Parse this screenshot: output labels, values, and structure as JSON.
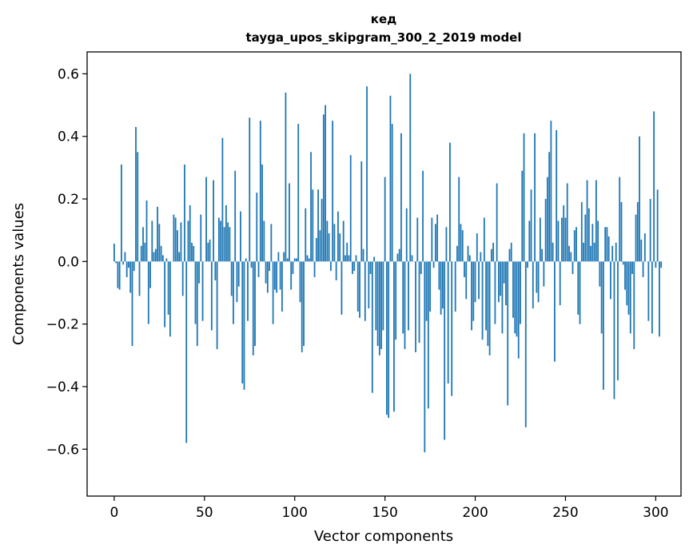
{
  "chart_data": {
    "type": "bar",
    "title": "кед",
    "subtitle": "tayga_upos_skipgram_300_2_2019 model",
    "xlabel": "Vector components",
    "ylabel": "Components values",
    "xlim": [
      -15,
      314
    ],
    "ylim": [
      -0.75,
      0.67
    ],
    "xticks": [
      0,
      50,
      100,
      150,
      200,
      250,
      300
    ],
    "xtick_labels": [
      "0",
      "50",
      "100",
      "150",
      "200",
      "250",
      "300"
    ],
    "yticks": [
      -0.6,
      -0.4,
      -0.2,
      0.0,
      0.2,
      0.4,
      0.6
    ],
    "ytick_labels": [
      "−0.6",
      "−0.4",
      "−0.2",
      "0.0",
      "0.2",
      "0.4",
      "0.6"
    ],
    "grid": false,
    "bar_color": "#1f77b4",
    "series": [
      {
        "values": [
          0.057,
          -0.005,
          -0.085,
          -0.09,
          0.31,
          -0.01,
          0.03,
          -0.05,
          -0.02,
          -0.1,
          -0.27,
          -0.03,
          0.43,
          0.35,
          -0.11,
          0.05,
          0.11,
          0.06,
          0.195,
          -0.2,
          -0.085,
          0.13,
          0.03,
          0.04,
          0.175,
          0.12,
          0.05,
          0.02,
          -0.21,
          0.01,
          -0.17,
          -0.24,
          0.0,
          0.15,
          0.14,
          0.1,
          0.03,
          0.125,
          -0.11,
          0.31,
          -0.58,
          0.13,
          0.18,
          0.06,
          0.05,
          -0.2,
          -0.27,
          -0.07,
          0.15,
          -0.19,
          0.0,
          0.27,
          0.06,
          0.07,
          -0.22,
          0.26,
          -0.06,
          -0.28,
          0.14,
          0.13,
          0.395,
          0.11,
          0.18,
          0.125,
          0.11,
          -0.11,
          -0.2,
          0.29,
          -0.13,
          -0.08,
          0.16,
          -0.39,
          -0.41,
          0.01,
          -0.19,
          0.46,
          -0.02,
          -0.3,
          -0.27,
          0.22,
          -0.05,
          0.45,
          0.31,
          0.13,
          -0.07,
          -0.1,
          -0.03,
          0.12,
          -0.2,
          -0.09,
          -0.1,
          0.03,
          -0.09,
          -0.16,
          0.03,
          0.54,
          0.01,
          0.25,
          -0.09,
          -0.04,
          0.01,
          0.01,
          0.44,
          -0.13,
          -0.29,
          -0.27,
          0.17,
          0.02,
          0.01,
          0.35,
          0.23,
          -0.05,
          0.075,
          0.23,
          0.1,
          0.2,
          0.47,
          0.5,
          0.13,
          0.09,
          -0.03,
          0.45,
          0.12,
          -0.06,
          0.16,
          0.09,
          -0.17,
          0.13,
          0.02,
          0.06,
          0.02,
          0.34,
          -0.04,
          -0.03,
          0.02,
          -0.16,
          -0.18,
          0.32,
          0.04,
          -0.19,
          0.56,
          -0.15,
          -0.04,
          -0.42,
          0.015,
          -0.22,
          -0.27,
          -0.3,
          -0.28,
          -0.22,
          0.27,
          -0.49,
          -0.5,
          0.53,
          0.44,
          -0.48,
          -0.25,
          0.025,
          0.04,
          0.41,
          -0.23,
          -0.28,
          0.17,
          -0.22,
          0.6,
          0.02,
          0.0,
          -0.29,
          0.14,
          -0.26,
          -0.04,
          0.29,
          -0.61,
          -0.19,
          -0.47,
          -0.16,
          0.14,
          -0.02,
          0.12,
          0.15,
          -0.09,
          -0.17,
          -0.15,
          -0.57,
          0.11,
          -0.39,
          0.38,
          -0.43,
          0.0,
          -0.16,
          0.05,
          0.27,
          0.12,
          0.1,
          -0.05,
          -0.12,
          0.05,
          0.02,
          -0.22,
          -0.19,
          -0.13,
          0.09,
          -0.12,
          0.03,
          -0.25,
          0.14,
          -0.22,
          -0.27,
          -0.3,
          0.04,
          0.06,
          -0.2,
          0.25,
          -0.13,
          -0.11,
          -0.23,
          -0.07,
          -0.14,
          -0.46,
          0.04,
          0.06,
          -0.18,
          -0.23,
          -0.24,
          -0.31,
          -0.2,
          0.29,
          0.41,
          -0.53,
          -0.02,
          0.13,
          0.23,
          -0.15,
          0.41,
          -0.1,
          -0.13,
          0.14,
          0.04,
          -0.08,
          0.2,
          0.27,
          0.35,
          0.45,
          0.06,
          -0.32,
          0.42,
          0.13,
          -0.14,
          0.14,
          0.18,
          0.14,
          0.25,
          0.05,
          0.03,
          -0.04,
          0.1,
          0.11,
          -0.17,
          -0.2,
          0.19,
          0.06,
          0.15,
          0.26,
          0.17,
          0.05,
          0.12,
          0.06,
          0.26,
          0.13,
          -0.08,
          -0.23,
          -0.41,
          0.11,
          0.11,
          0.08,
          -0.12,
          0.05,
          -0.44,
          0.06,
          -0.38,
          0.27,
          0.19,
          -0.01,
          -0.09,
          -0.14,
          -0.17,
          -0.23,
          -0.04,
          -0.28,
          0.15,
          0.19,
          0.4,
          0.07,
          -0.05,
          0.09,
          0.0,
          -0.19,
          0.2,
          -0.23,
          0.48,
          -0.02,
          0.23,
          -0.24,
          -0.02
        ]
      }
    ]
  }
}
